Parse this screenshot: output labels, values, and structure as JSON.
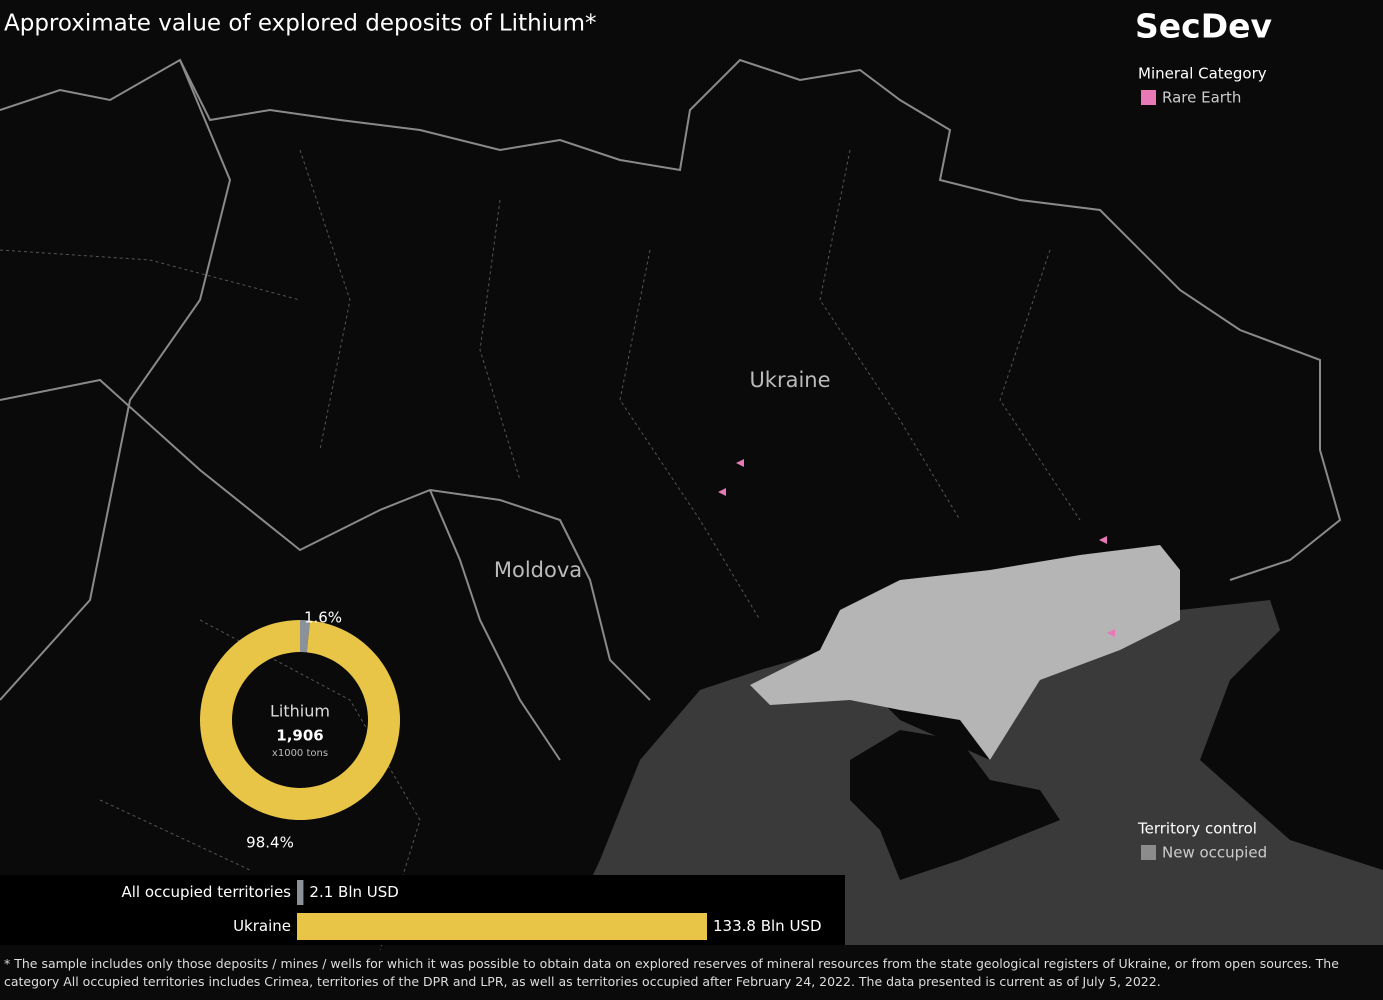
{
  "title": "Approximate value of explored deposits of Lithium*",
  "brand": "SecDev",
  "legends": {
    "mineral": {
      "title": "Mineral Category",
      "items": [
        "Rare Earth"
      ],
      "color": "#e879b6"
    },
    "territory": {
      "title": "Territory control",
      "items": [
        "New occupied"
      ],
      "color": "#8c8c8c"
    }
  },
  "map_labels": [
    "Ukraine",
    "Moldova"
  ],
  "chart_data": [
    {
      "type": "donut",
      "center_title": "Lithium",
      "center_value": "1,906",
      "center_unit": "x1000 tons",
      "categories": [
        "All occupied territories",
        "Ukraine"
      ],
      "values": [
        1.6,
        98.4
      ],
      "value_labels": [
        "1.6%",
        "98.4%"
      ],
      "colors": [
        "#8a9199",
        "#e8c547"
      ]
    },
    {
      "type": "hbar",
      "categories": [
        "All occupied territories",
        "Ukraine"
      ],
      "values": [
        2.1,
        133.8
      ],
      "value_labels": [
        "2.1 Bln USD",
        "133.8 Bln USD"
      ],
      "colors": [
        "#8a9199",
        "#e8c547"
      ]
    }
  ],
  "footnote": "* The sample includes only those deposits / mines / wells for which it was possible to obtain data on explored reserves of mineral resources from the state geological registers of Ukraine, or from open sources. The category All occupied territories includes Crimea, territories of the DPR and LPR, as well as territories occupied after February 24, 2022. The data presented is current as of July 5, 2022."
}
